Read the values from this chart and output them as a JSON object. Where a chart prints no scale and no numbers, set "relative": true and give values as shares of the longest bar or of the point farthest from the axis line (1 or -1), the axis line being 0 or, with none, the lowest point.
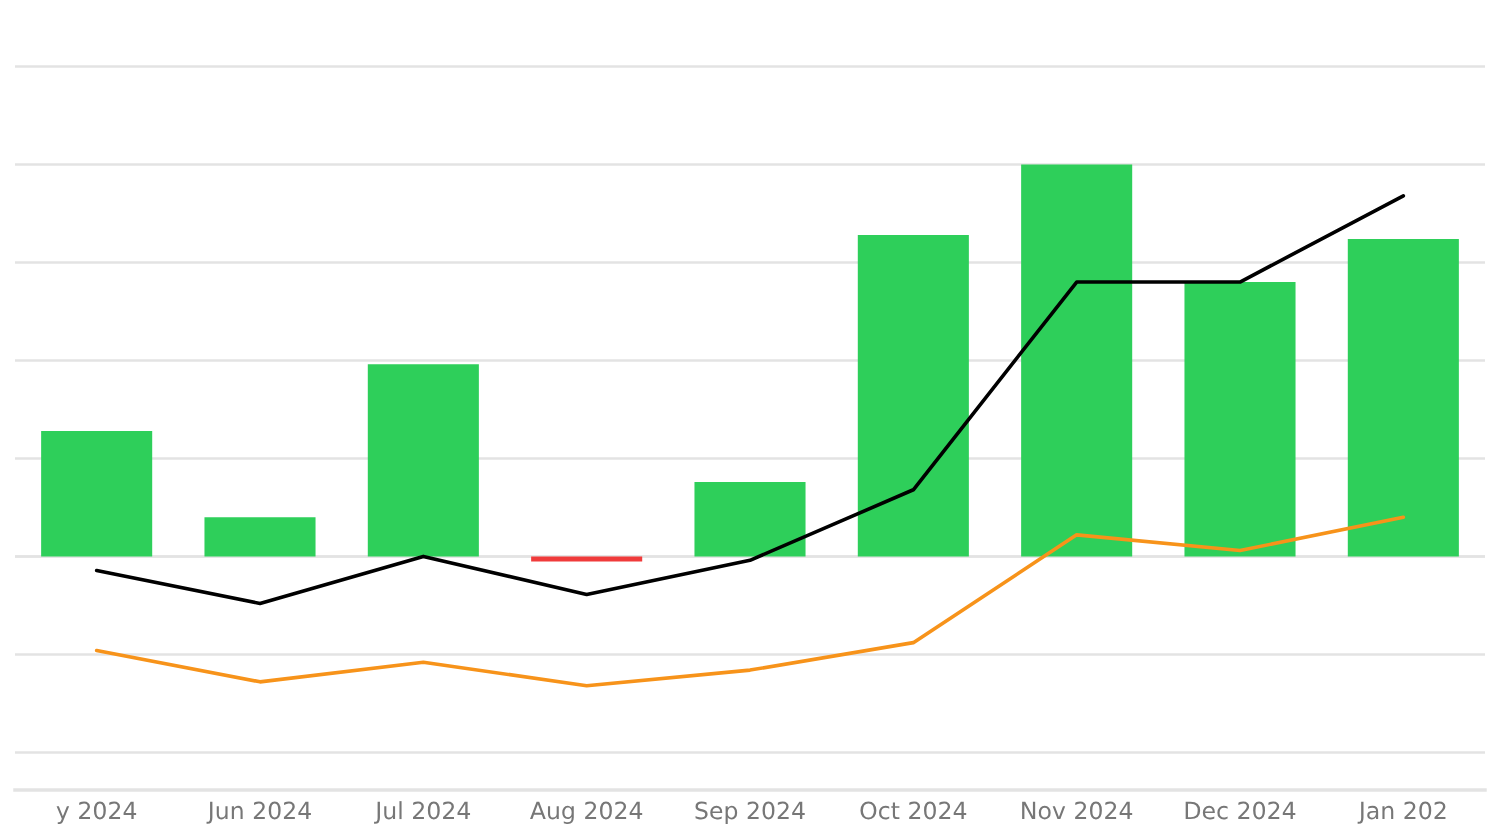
{
  "chart_data": {
    "type": "bar",
    "relative": true,
    "categories": [
      "y 2024",
      "Jun 2024",
      "Jul 2024",
      "Aug 2024",
      "Sep 2024",
      "Oct 2024",
      "Nov 2024",
      "Dec 2024",
      "Jan 202"
    ],
    "series": [
      {
        "colors": [
          "#2ecf5a",
          "#2ecf5a",
          "#2ecf5a",
          "#f03b3b",
          "#2ecf5a",
          "#2ecf5a",
          "#2ecf5a",
          "#2ecf5a",
          "#2ecf5a"
        ],
        "values": [
          0.32,
          0.1,
          0.49,
          -0.013,
          0.19,
          0.82,
          1.0,
          0.7,
          0.81
        ]
      },
      {
        "type": "line",
        "color": "#000000",
        "values": [
          -0.036,
          -0.12,
          0.0,
          -0.097,
          -0.01,
          0.17,
          0.7,
          0.7,
          0.92
        ]
      },
      {
        "type": "line",
        "color": "#f7931a",
        "values": [
          -0.24,
          -0.32,
          -0.27,
          -0.33,
          -0.29,
          -0.22,
          0.055,
          0.015,
          0.1
        ]
      }
    ],
    "grid": "y"
  }
}
